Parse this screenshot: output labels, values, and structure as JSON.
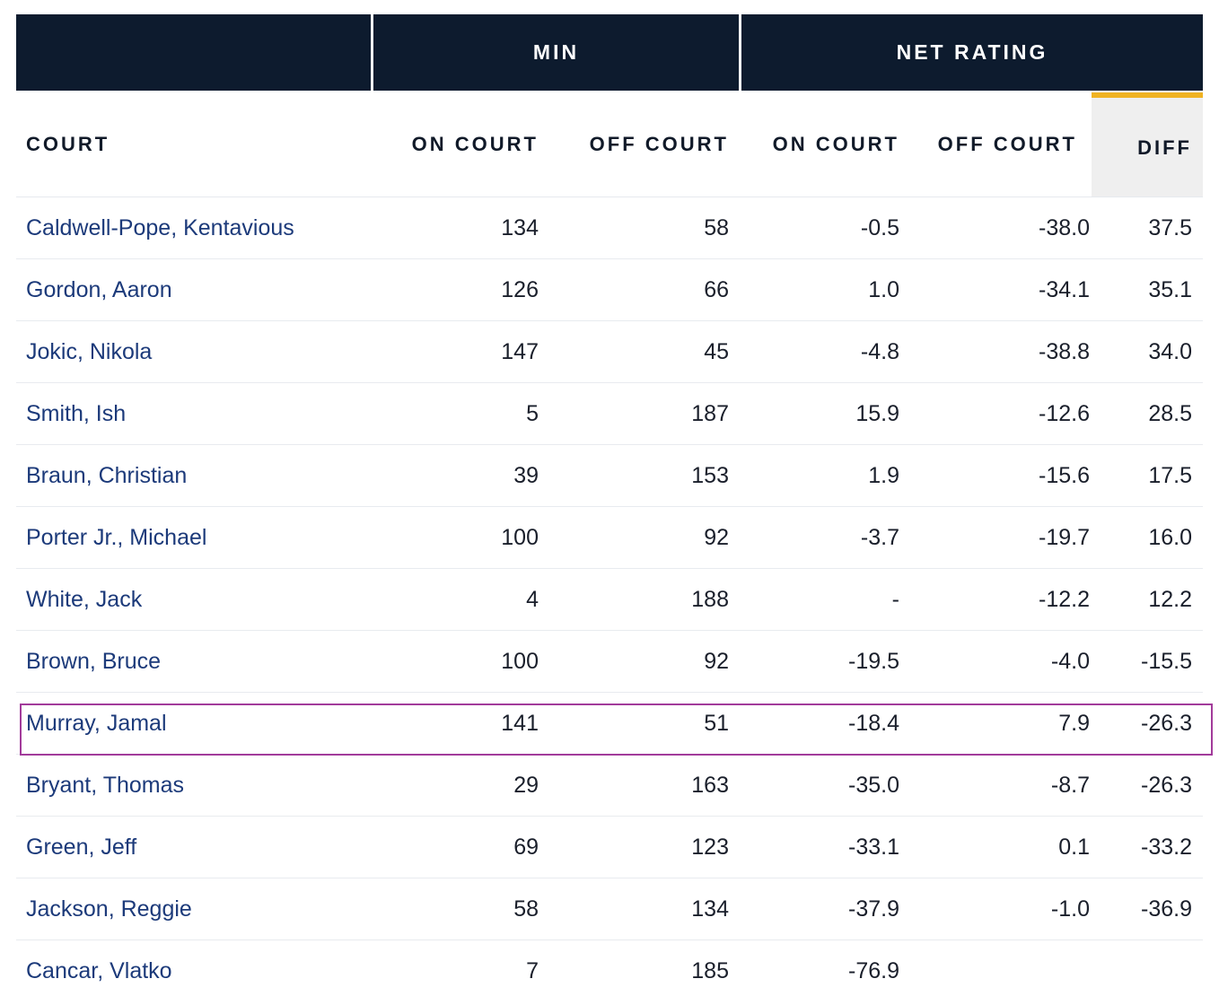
{
  "group_headers": {
    "min": "MIN",
    "net_rating": "NET RATING"
  },
  "columns": {
    "court": "COURT",
    "on_court_min": "ON COURT",
    "off_court_min": "OFF COURT",
    "on_court_net": "ON COURT",
    "off_court_net": "OFF COURT",
    "diff": "DIFF"
  },
  "colors": {
    "header_bg": "#0d1b2e",
    "accent_gold": "#f0b323",
    "player_link": "#1c3a7a",
    "highlight_border": "#a23b9b"
  },
  "highlighted_player": "Murray, Jamal",
  "rows": [
    {
      "player": "Caldwell-Pope, Kentavious",
      "on_min": "134",
      "off_min": "58",
      "on_net": "-0.5",
      "off_net": "-38.0",
      "diff": "37.5"
    },
    {
      "player": "Gordon, Aaron",
      "on_min": "126",
      "off_min": "66",
      "on_net": "1.0",
      "off_net": "-34.1",
      "diff": "35.1"
    },
    {
      "player": "Jokic, Nikola",
      "on_min": "147",
      "off_min": "45",
      "on_net": "-4.8",
      "off_net": "-38.8",
      "diff": "34.0"
    },
    {
      "player": "Smith, Ish",
      "on_min": "5",
      "off_min": "187",
      "on_net": "15.9",
      "off_net": "-12.6",
      "diff": "28.5"
    },
    {
      "player": "Braun, Christian",
      "on_min": "39",
      "off_min": "153",
      "on_net": "1.9",
      "off_net": "-15.6",
      "diff": "17.5"
    },
    {
      "player": "Porter Jr., Michael",
      "on_min": "100",
      "off_min": "92",
      "on_net": "-3.7",
      "off_net": "-19.7",
      "diff": "16.0"
    },
    {
      "player": "White, Jack",
      "on_min": "4",
      "off_min": "188",
      "on_net": "-",
      "off_net": "-12.2",
      "diff": "12.2"
    },
    {
      "player": "Brown, Bruce",
      "on_min": "100",
      "off_min": "92",
      "on_net": "-19.5",
      "off_net": "-4.0",
      "diff": "-15.5"
    },
    {
      "player": "Murray, Jamal",
      "on_min": "141",
      "off_min": "51",
      "on_net": "-18.4",
      "off_net": "7.9",
      "diff": "-26.3"
    },
    {
      "player": "Bryant, Thomas",
      "on_min": "29",
      "off_min": "163",
      "on_net": "-35.0",
      "off_net": "-8.7",
      "diff": "-26.3"
    },
    {
      "player": "Green, Jeff",
      "on_min": "69",
      "off_min": "123",
      "on_net": "-33.1",
      "off_net": "0.1",
      "diff": "-33.2"
    },
    {
      "player": "Jackson, Reggie",
      "on_min": "58",
      "off_min": "134",
      "on_net": "-37.9",
      "off_net": "-1.0",
      "diff": "-36.9"
    },
    {
      "player": "Cancar, Vlatko",
      "on_min": "7",
      "off_min": "185",
      "on_net": "-76.9",
      "off_net": "",
      "diff": ""
    }
  ]
}
